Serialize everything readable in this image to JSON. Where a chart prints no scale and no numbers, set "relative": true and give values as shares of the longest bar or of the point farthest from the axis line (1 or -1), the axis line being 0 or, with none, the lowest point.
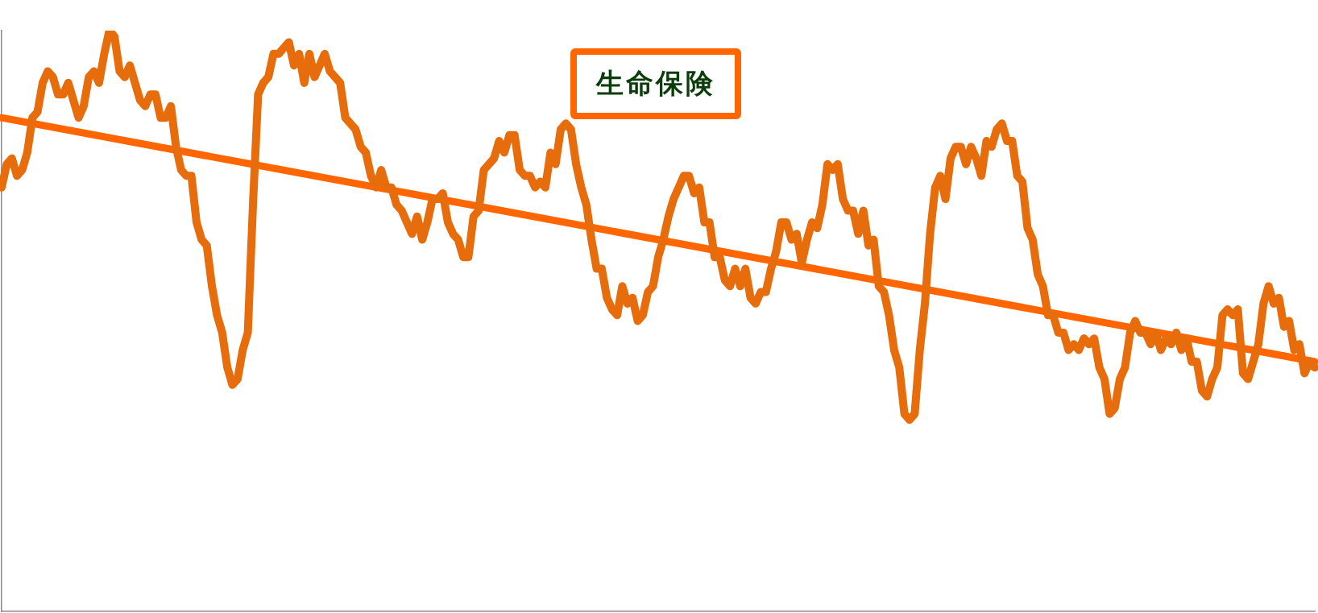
{
  "chart_data": {
    "type": "line",
    "title": "生命保険",
    "relative": true,
    "legend": false,
    "grid": false,
    "tick_labels": false,
    "marker": "none",
    "line_style": "solid",
    "categories": [
      null,
      null,
      null,
      null,
      null,
      null,
      null,
      null,
      null,
      null,
      null,
      null,
      null,
      null,
      null,
      null,
      null,
      null,
      null,
      null,
      null,
      null,
      null,
      null,
      null,
      null,
      null,
      null,
      null,
      null,
      null,
      null,
      null,
      null,
      null,
      null,
      null,
      null,
      null,
      null,
      null,
      null,
      null,
      null,
      null,
      null,
      null,
      null,
      null,
      null,
      null,
      null,
      null,
      null,
      null,
      null,
      null,
      null,
      null,
      null,
      null,
      null,
      null,
      null,
      null,
      null,
      null,
      null,
      null,
      null,
      null,
      null,
      null,
      null,
      null,
      null,
      null,
      null,
      null,
      null,
      null,
      null,
      null,
      null,
      null,
      null,
      null,
      null,
      null,
      null,
      null,
      null,
      null,
      null,
      null,
      null,
      null,
      null,
      null,
      null,
      null,
      null,
      null,
      null,
      null,
      null,
      null,
      null,
      null,
      null,
      null,
      null,
      null,
      null,
      null,
      null,
      null,
      null,
      null,
      null,
      null,
      null,
      null,
      null,
      null,
      null,
      null,
      null,
      null,
      null,
      null,
      null,
      null,
      null,
      null,
      null,
      null,
      null,
      null,
      null,
      null,
      null,
      null,
      null,
      null,
      null,
      null,
      null,
      null,
      null,
      null,
      null,
      null,
      null,
      null,
      null,
      null,
      null,
      null,
      null,
      null,
      null,
      null,
      null,
      null,
      null,
      null,
      null,
      null,
      null,
      null,
      null,
      null,
      null,
      null,
      null,
      null,
      null,
      null,
      null,
      null,
      null,
      null,
      null,
      null,
      null,
      null,
      null,
      null,
      null,
      null,
      null,
      null,
      null,
      null,
      null,
      null,
      null,
      null,
      null,
      null,
      null,
      null,
      null,
      null,
      null,
      null,
      null,
      null,
      null,
      null,
      null,
      null,
      null,
      null,
      null,
      null,
      null,
      null,
      null,
      null,
      null,
      null,
      null,
      null,
      null,
      null,
      null,
      null,
      null,
      null,
      null,
      null,
      null,
      null,
      null,
      null,
      null,
      null,
      null,
      null,
      null,
      null,
      null,
      null,
      null,
      null,
      null,
      null,
      null,
      null,
      null,
      null,
      null,
      null,
      null,
      null
    ],
    "series": [
      {
        "color": "#e66c0c",
        "values": [
          0.73,
          0.77,
          0.78,
          0.75,
          0.76,
          0.79,
          0.85,
          0.86,
          0.91,
          0.93,
          0.92,
          0.89,
          0.89,
          0.91,
          0.88,
          0.85,
          0.87,
          0.92,
          0.93,
          0.91,
          0.96,
          1.0,
          0.99,
          0.93,
          0.92,
          0.94,
          0.91,
          0.88,
          0.87,
          0.89,
          0.89,
          0.85,
          0.85,
          0.87,
          0.8,
          0.76,
          0.75,
          0.75,
          0.67,
          0.64,
          0.63,
          0.56,
          0.51,
          0.48,
          0.42,
          0.39,
          0.4,
          0.45,
          0.48,
          0.7,
          0.89,
          0.91,
          0.92,
          0.96,
          0.96,
          0.97,
          0.98,
          0.94,
          0.96,
          0.91,
          0.96,
          0.92,
          0.94,
          0.96,
          0.93,
          0.92,
          0.91,
          0.85,
          0.84,
          0.83,
          0.8,
          0.79,
          0.75,
          0.73,
          0.76,
          0.73,
          0.73,
          0.7,
          0.69,
          0.67,
          0.65,
          0.68,
          0.64,
          0.67,
          0.71,
          0.71,
          0.72,
          0.67,
          0.65,
          0.64,
          0.61,
          0.61,
          0.68,
          0.69,
          0.76,
          0.77,
          0.78,
          0.81,
          0.79,
          0.82,
          0.82,
          0.76,
          0.75,
          0.75,
          0.73,
          0.74,
          0.73,
          0.79,
          0.77,
          0.83,
          0.84,
          0.83,
          0.77,
          0.73,
          0.7,
          0.64,
          0.59,
          0.59,
          0.54,
          0.52,
          0.51,
          0.56,
          0.53,
          0.54,
          0.5,
          0.51,
          0.55,
          0.56,
          0.61,
          0.64,
          0.68,
          0.71,
          0.73,
          0.75,
          0.75,
          0.72,
          0.73,
          0.67,
          0.67,
          0.61,
          0.61,
          0.57,
          0.56,
          0.59,
          0.56,
          0.59,
          0.54,
          0.53,
          0.55,
          0.55,
          0.59,
          0.62,
          0.67,
          0.67,
          0.64,
          0.65,
          0.6,
          0.64,
          0.67,
          0.66,
          0.7,
          0.77,
          0.76,
          0.77,
          0.71,
          0.69,
          0.69,
          0.65,
          0.69,
          0.63,
          0.64,
          0.56,
          0.55,
          0.51,
          0.45,
          0.42,
          0.34,
          0.33,
          0.34,
          0.45,
          0.53,
          0.65,
          0.73,
          0.75,
          0.71,
          0.78,
          0.8,
          0.8,
          0.77,
          0.8,
          0.78,
          0.75,
          0.81,
          0.8,
          0.83,
          0.84,
          0.81,
          0.81,
          0.75,
          0.74,
          0.66,
          0.64,
          0.58,
          0.56,
          0.51,
          0.51,
          0.48,
          0.48,
          0.45,
          0.46,
          0.45,
          0.47,
          0.46,
          0.47,
          0.42,
          0.4,
          0.34,
          0.35,
          0.4,
          0.42,
          0.48,
          0.5,
          0.48,
          0.48,
          0.46,
          0.48,
          0.45,
          0.47,
          0.46,
          0.48,
          0.45,
          0.47,
          0.43,
          0.43,
          0.38,
          0.37,
          0.4,
          0.42,
          0.51,
          0.52,
          0.51,
          0.52,
          0.41,
          0.4,
          0.43,
          0.46,
          0.53,
          0.56,
          0.53,
          0.54,
          0.49,
          0.5,
          0.45,
          0.46,
          0.41,
          0.43,
          0.42
        ]
      },
      {
        "type": "line",
        "color": "#ff6600",
        "values": [
          0.85,
          null,
          null,
          null,
          null,
          null,
          null,
          null,
          null,
          null,
          null,
          null,
          null,
          null,
          null,
          null,
          null,
          null,
          null,
          null,
          null,
          null,
          null,
          null,
          null,
          null,
          null,
          null,
          null,
          null,
          null,
          null,
          null,
          null,
          null,
          null,
          null,
          null,
          null,
          null,
          null,
          null,
          null,
          null,
          null,
          null,
          null,
          null,
          null,
          null,
          null,
          null,
          null,
          null,
          null,
          null,
          null,
          null,
          null,
          null,
          null,
          null,
          null,
          null,
          null,
          null,
          null,
          null,
          null,
          null,
          null,
          null,
          null,
          null,
          null,
          null,
          null,
          null,
          null,
          null,
          null,
          null,
          null,
          null,
          null,
          null,
          null,
          null,
          null,
          null,
          null,
          null,
          null,
          null,
          null,
          null,
          null,
          null,
          null,
          null,
          null,
          null,
          null,
          null,
          null,
          null,
          null,
          null,
          null,
          null,
          null,
          null,
          null,
          null,
          null,
          null,
          null,
          null,
          null,
          null,
          null,
          null,
          null,
          null,
          null,
          null,
          null,
          null,
          null,
          null,
          null,
          null,
          null,
          null,
          null,
          null,
          null,
          null,
          null,
          null,
          null,
          null,
          null,
          null,
          null,
          null,
          null,
          null,
          null,
          null,
          null,
          null,
          null,
          null,
          null,
          null,
          null,
          null,
          null,
          null,
          null,
          null,
          null,
          null,
          null,
          null,
          null,
          null,
          null,
          null,
          null,
          null,
          null,
          null,
          null,
          null,
          null,
          null,
          null,
          null,
          null,
          null,
          null,
          null,
          null,
          null,
          null,
          null,
          null,
          null,
          null,
          null,
          null,
          null,
          null,
          null,
          null,
          null,
          null,
          null,
          null,
          null,
          null,
          null,
          null,
          null,
          null,
          null,
          null,
          null,
          null,
          null,
          null,
          null,
          null,
          null,
          null,
          null,
          null,
          null,
          null,
          null,
          null,
          null,
          null,
          null,
          null,
          null,
          null,
          null,
          null,
          null,
          null,
          null,
          null,
          null,
          null,
          null,
          null,
          null,
          null,
          null,
          null,
          null,
          null,
          null,
          null,
          null,
          null,
          null,
          null,
          null,
          null,
          null,
          null,
          null,
          0.43
        ]
      }
    ]
  }
}
